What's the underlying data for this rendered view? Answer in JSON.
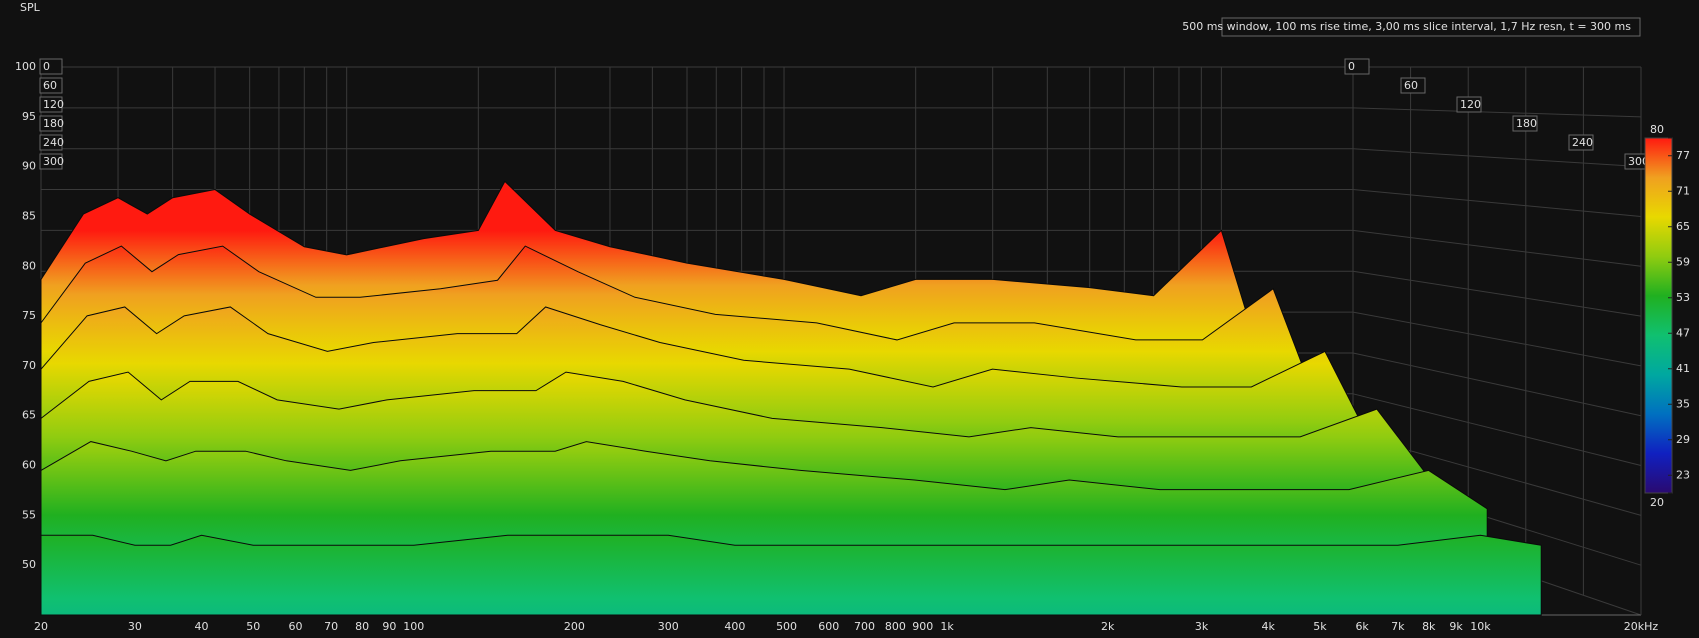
{
  "chart_data": {
    "type": "waterfall",
    "y_label": "SPL",
    "info": "500 ms window, 100 ms rise time, 3,00 ms slice interval, 1,7 Hz resn, t = 300 ms",
    "x": [
      20,
      25,
      30,
      35,
      40,
      50,
      60,
      80,
      100,
      150,
      200,
      230,
      300,
      400,
      600,
      1000,
      1500,
      2000,
      3000,
      5000,
      7000,
      10000,
      13000
    ],
    "slices": [
      {
        "t": 0,
        "values": [
          74,
          82,
          84,
          82,
          84,
          85,
          82,
          78,
          77,
          79,
          80,
          86,
          80,
          78,
          76,
          74,
          72,
          74,
          74,
          73,
          72,
          80,
          60
        ]
      },
      {
        "t": 60,
        "values": [
          70,
          77,
          79,
          76,
          78,
          79,
          76,
          73,
          73,
          74,
          75,
          79,
          76,
          73,
          71,
          70,
          68,
          70,
          70,
          68,
          68,
          74,
          58
        ]
      },
      {
        "t": 120,
        "values": [
          66,
          72,
          73,
          70,
          72,
          73,
          70,
          68,
          69,
          70,
          70,
          73,
          71,
          69,
          67,
          66,
          64,
          66,
          65,
          64,
          64,
          68,
          56
        ]
      },
      {
        "t": 180,
        "values": [
          62,
          66,
          67,
          64,
          66,
          66,
          64,
          63,
          64,
          65,
          65,
          67,
          66,
          64,
          62,
          61,
          60,
          61,
          60,
          60,
          60,
          63,
          55
        ]
      },
      {
        "t": 240,
        "values": [
          58,
          61,
          60,
          59,
          60,
          60,
          59,
          58,
          59,
          60,
          60,
          61,
          60,
          59,
          58,
          57,
          56,
          57,
          56,
          56,
          56,
          58,
          54
        ]
      },
      {
        "t": 300,
        "values": [
          53,
          53,
          52,
          52,
          53,
          52,
          52,
          52,
          52,
          53,
          53,
          53,
          53,
          52,
          52,
          52,
          52,
          52,
          52,
          52,
          52,
          53,
          52
        ]
      }
    ],
    "xlim": [
      20,
      20000
    ],
    "log_x": true,
    "xticks": [
      20,
      30,
      40,
      50,
      60,
      70,
      80,
      90,
      100,
      200,
      300,
      400,
      500,
      600,
      700,
      800,
      900,
      {
        "value": 1000,
        "label": "1k"
      },
      {
        "value": 2000,
        "label": "2k"
      },
      {
        "value": 3000,
        "label": "3k"
      },
      {
        "value": 4000,
        "label": "4k"
      },
      {
        "value": 5000,
        "label": "5k"
      },
      {
        "value": 6000,
        "label": "6k"
      },
      {
        "value": 7000,
        "label": "7k"
      },
      {
        "value": 8000,
        "label": "8k"
      },
      {
        "value": 9000,
        "label": "9k"
      },
      {
        "value": 10000,
        "label": "10k"
      },
      {
        "value": 20000,
        "label": "20kHz"
      }
    ],
    "ylim": [
      45,
      100
    ],
    "yticks": [
      50,
      55,
      60,
      65,
      70,
      75,
      80,
      85,
      90,
      95,
      100
    ],
    "tlim": [
      0,
      300
    ],
    "tticks": [
      0,
      60,
      120,
      180,
      240,
      300
    ],
    "grid": true,
    "colorbar": {
      "lim": [
        20,
        80
      ],
      "ticks": [
        20,
        23,
        29,
        35,
        41,
        47,
        53,
        59,
        65,
        71,
        77,
        80
      ],
      "colors": [
        "#2a0a70",
        "#1020c0",
        "#0070c0",
        "#00a8a0",
        "#10c070",
        "#20b020",
        "#90cc10",
        "#e8d800",
        "#f0a020",
        "#ff1a10"
      ]
    }
  }
}
